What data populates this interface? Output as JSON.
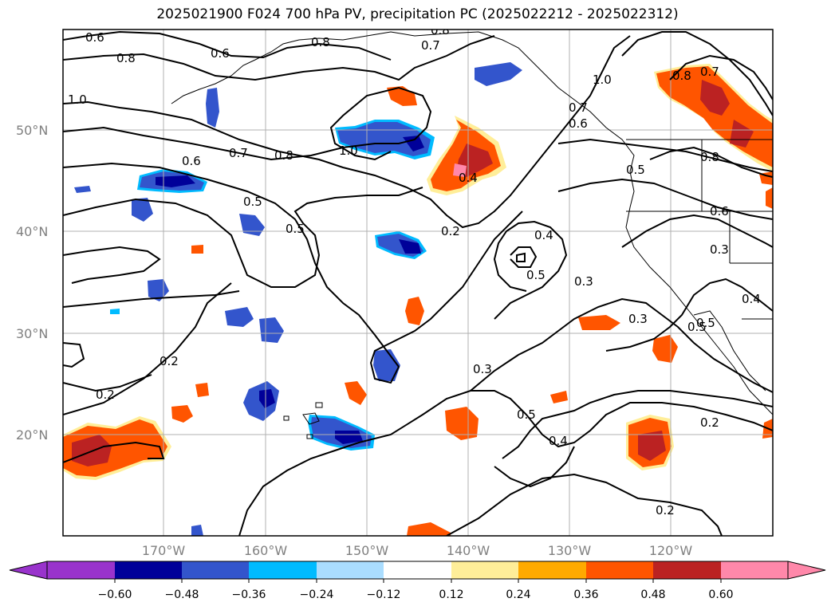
{
  "title": "2025021900 F024 700 hPa PV, precipitation PC (2025022212 - 2025022312)",
  "colors": {
    "frame": "#000000",
    "grid": "#b0b0b0",
    "coast": "#000000",
    "contour": "#000000",
    "axis_label": "#808080"
  },
  "map": {
    "lat_labels": [
      "50°N",
      "40°N",
      "30°N",
      "20°N"
    ],
    "lon_labels": [
      "170°W",
      "160°W",
      "150°W",
      "140°W",
      "130°W",
      "120°W"
    ],
    "contour_labels": [
      "0.6",
      "0.8",
      "0.8",
      "0.7",
      "0.8",
      "1.0",
      "0.6",
      "1.0",
      "0.7",
      "0.8",
      "0.6",
      "0.5",
      "1.0",
      "0.4",
      "0.5",
      "0.5",
      "0.2",
      "0.4",
      "0.5",
      "0.3",
      "0.3",
      "0.2",
      "0.3",
      "0.2",
      "0.5",
      "0.4",
      "0.2",
      "0.2",
      "0.7",
      "0.8",
      "0.6",
      "0.5",
      "0.3",
      "0.4",
      "0.5",
      "0.6",
      "0.7",
      "0.8"
    ]
  },
  "colorbar": {
    "ticks": [
      "−0.60",
      "−0.48",
      "−0.36",
      "−0.24",
      "−0.12",
      "0.12",
      "0.24",
      "0.36",
      "0.48",
      "0.60"
    ],
    "colors": [
      "#9933cc",
      "#000099",
      "#3355cc",
      "#00bbff",
      "#aaddff",
      "#ffffff",
      "#ffee99",
      "#ffaa00",
      "#ff5500",
      "#bb2222",
      "#ff88aa"
    ]
  }
}
